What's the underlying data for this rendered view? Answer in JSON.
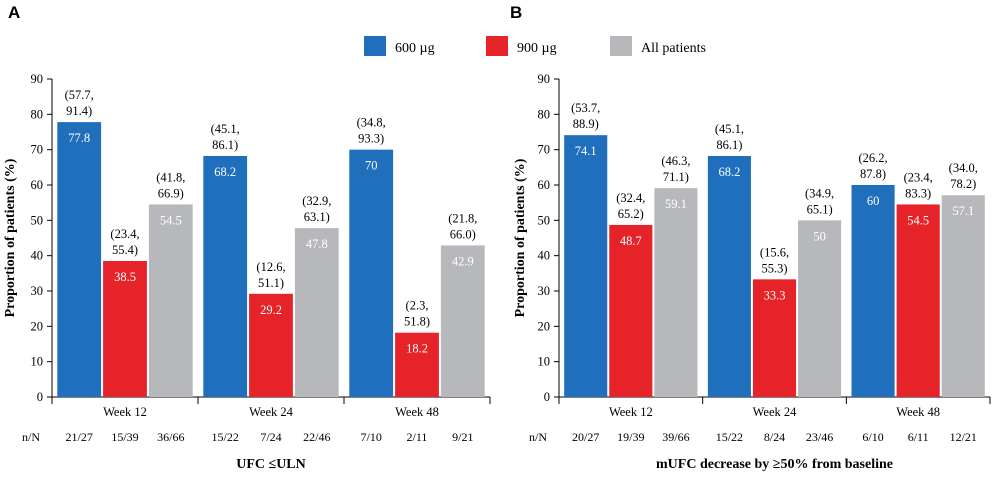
{
  "legend": {
    "entries": [
      {
        "name": "600 µg",
        "color": "#1f6fbd"
      },
      {
        "name": "900 µg",
        "color": "#e52329"
      },
      {
        "name": "All patients",
        "color": "#b7b8bb"
      }
    ]
  },
  "chart_data": [
    {
      "panel": "A",
      "type": "bar",
      "title": "",
      "xlabel": "UFC ≤ULN",
      "ylabel": "Proportion of patients (%)",
      "ylim": [
        0,
        90
      ],
      "yticks": [
        0,
        10,
        20,
        30,
        40,
        50,
        60,
        70,
        80,
        90
      ],
      "categories": [
        "Week 12",
        "Week 24",
        "Week 48"
      ],
      "nn_label": "n/N",
      "series": [
        {
          "name": "600 µg",
          "color": "#1f6fbd",
          "values": [
            77.8,
            68.2,
            70
          ],
          "labels": [
            "77.8",
            "68.2",
            "70"
          ],
          "ci": [
            [
              "(57.7,",
              "91.4)"
            ],
            [
              "(45.1,",
              "86.1)"
            ],
            [
              "(34.8,",
              "93.3)"
            ]
          ],
          "nn": [
            "21/27",
            "15/22",
            "7/10"
          ]
        },
        {
          "name": "900 µg",
          "color": "#e52329",
          "values": [
            38.5,
            29.2,
            18.2
          ],
          "labels": [
            "38.5",
            "29.2",
            "18.2"
          ],
          "ci": [
            [
              "(23.4,",
              "55.4)"
            ],
            [
              "(12.6,",
              "51.1)"
            ],
            [
              "(2.3,",
              "51.8)"
            ]
          ],
          "nn": [
            "15/39",
            "7/24",
            "2/11"
          ]
        },
        {
          "name": "All patients",
          "color": "#b7b8bb",
          "values": [
            54.5,
            47.8,
            42.9
          ],
          "labels": [
            "54.5",
            "47.8",
            "42.9"
          ],
          "ci": [
            [
              "(41.8,",
              "66.9)"
            ],
            [
              "(32.9,",
              "63.1)"
            ],
            [
              "(21.8,",
              "66.0)"
            ]
          ],
          "nn": [
            "36/66",
            "22/46",
            "9/21"
          ]
        }
      ]
    },
    {
      "panel": "B",
      "type": "bar",
      "title": "",
      "xlabel": "mUFC decrease by ≥50% from baseline",
      "ylabel": "Proportion of patients (%)",
      "ylim": [
        0,
        90
      ],
      "yticks": [
        0,
        10,
        20,
        30,
        40,
        50,
        60,
        70,
        80,
        90
      ],
      "categories": [
        "Week 12",
        "Week 24",
        "Week 48"
      ],
      "nn_label": "n/N",
      "series": [
        {
          "name": "600 µg",
          "color": "#1f6fbd",
          "values": [
            74.1,
            68.2,
            60
          ],
          "labels": [
            "74.1",
            "68.2",
            "60"
          ],
          "ci": [
            [
              "(53.7,",
              "88.9)"
            ],
            [
              "(45.1,",
              "86.1)"
            ],
            [
              "(26.2,",
              "87.8)"
            ]
          ],
          "nn": [
            "20/27",
            "15/22",
            "6/10"
          ]
        },
        {
          "name": "900 µg",
          "color": "#e52329",
          "values": [
            48.7,
            33.3,
            54.5
          ],
          "labels": [
            "48.7",
            "33.3",
            "54.5"
          ],
          "ci": [
            [
              "(32.4,",
              "65.2)"
            ],
            [
              "(15.6,",
              "55.3)"
            ],
            [
              "(23.4,",
              "83.3)"
            ]
          ],
          "nn": [
            "19/39",
            "8/24",
            "6/11"
          ]
        },
        {
          "name": "All patients",
          "color": "#b7b8bb",
          "values": [
            59.1,
            50,
            57.1
          ],
          "labels": [
            "59.1",
            "50",
            "57.1"
          ],
          "ci": [
            [
              "(46.3,",
              "71.1)"
            ],
            [
              "(34.9,",
              "65.1)"
            ],
            [
              "(34.0,",
              "78.2)"
            ]
          ],
          "nn": [
            "39/66",
            "23/46",
            "12/21"
          ]
        }
      ]
    }
  ]
}
